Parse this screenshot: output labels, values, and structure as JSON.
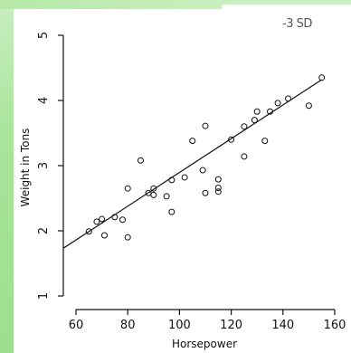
{
  "badge": "-3 SD",
  "chart_data": {
    "type": "scatter",
    "title": "",
    "xlabel": "Horsepower",
    "ylabel": "Weight in Tons",
    "xlim": [
      60,
      160
    ],
    "ylim": [
      1,
      5
    ],
    "xticks": [
      60,
      80,
      100,
      120,
      140,
      160
    ],
    "yticks": [
      1,
      2,
      3,
      4,
      5
    ],
    "grid": false,
    "trendline": {
      "x": [
        55,
        155
      ],
      "y": [
        1.73,
        4.32
      ]
    },
    "points": [
      {
        "x": 65,
        "y": 1.99
      },
      {
        "x": 68,
        "y": 2.14
      },
      {
        "x": 70,
        "y": 2.18
      },
      {
        "x": 71,
        "y": 1.93
      },
      {
        "x": 75,
        "y": 2.21
      },
      {
        "x": 78,
        "y": 2.17
      },
      {
        "x": 80,
        "y": 2.65
      },
      {
        "x": 80,
        "y": 1.9
      },
      {
        "x": 85,
        "y": 3.08
      },
      {
        "x": 88,
        "y": 2.58
      },
      {
        "x": 90,
        "y": 2.55
      },
      {
        "x": 90,
        "y": 2.65
      },
      {
        "x": 95,
        "y": 2.53
      },
      {
        "x": 97,
        "y": 2.78
      },
      {
        "x": 97,
        "y": 2.29
      },
      {
        "x": 102,
        "y": 2.82
      },
      {
        "x": 105,
        "y": 3.38
      },
      {
        "x": 109,
        "y": 2.93
      },
      {
        "x": 110,
        "y": 3.61
      },
      {
        "x": 110,
        "y": 2.58
      },
      {
        "x": 115,
        "y": 2.79
      },
      {
        "x": 115,
        "y": 2.66
      },
      {
        "x": 115,
        "y": 2.6
      },
      {
        "x": 120,
        "y": 3.4
      },
      {
        "x": 125,
        "y": 3.6
      },
      {
        "x": 125,
        "y": 3.14
      },
      {
        "x": 129,
        "y": 3.7
      },
      {
        "x": 130,
        "y": 3.83
      },
      {
        "x": 133,
        "y": 3.38
      },
      {
        "x": 135,
        "y": 3.83
      },
      {
        "x": 138,
        "y": 3.96
      },
      {
        "x": 142,
        "y": 4.03
      },
      {
        "x": 150,
        "y": 3.92
      },
      {
        "x": 155,
        "y": 4.35
      }
    ]
  }
}
